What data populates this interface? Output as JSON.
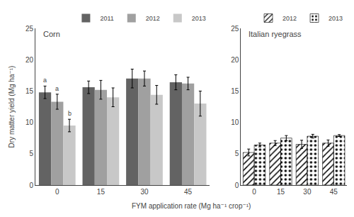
{
  "chart_data": [
    {
      "type": "bar",
      "title": "Corn",
      "categories": [
        "0",
        "15",
        "30",
        "45"
      ],
      "series": [
        {
          "name": "2011",
          "color": "#636363",
          "values": [
            14.8,
            15.6,
            17.0,
            16.4
          ],
          "errors": [
            1.0,
            1.0,
            1.5,
            1.2
          ]
        },
        {
          "name": "2012",
          "color": "#a0a0a0",
          "values": [
            13.3,
            15.2,
            17.0,
            16.2
          ],
          "errors": [
            1.2,
            1.5,
            1.2,
            1.0
          ]
        },
        {
          "name": "2013",
          "color": "#c8c8c8",
          "values": [
            9.5,
            14.0,
            14.4,
            13.0
          ],
          "errors": [
            1.0,
            1.5,
            1.5,
            2.0
          ]
        }
      ],
      "annotations": [
        {
          "text": "a",
          "series": "2011",
          "category": "0"
        },
        {
          "text": "a",
          "series": "2012",
          "category": "0"
        },
        {
          "text": "b",
          "series": "2013",
          "category": "0"
        }
      ],
      "ylim": [
        0,
        25
      ],
      "yticks": [
        0,
        5,
        10,
        15,
        20,
        25
      ],
      "ylabel": "Dry matter yield (Mg ha⁻¹)",
      "xlabel": "FYM application rate (Mg ha⁻¹ crop⁻¹)",
      "grid": false,
      "legend": "upper right"
    },
    {
      "type": "bar",
      "title": "Italian ryegrass",
      "categories": [
        "0",
        "15",
        "30",
        "45"
      ],
      "series": [
        {
          "name": "2012",
          "color": "#c0c0c0",
          "marker": "hatched",
          "values": [
            5.2,
            6.7,
            6.5,
            6.7
          ],
          "errors": [
            0.55,
            0.4,
            0.65,
            0.5
          ]
        },
        {
          "name": "2013",
          "color": "#c0c0c0",
          "marker": "dotted",
          "values": [
            6.4,
            7.5,
            7.8,
            7.9
          ],
          "errors": [
            0.3,
            0.4,
            0.3,
            0.15
          ]
        }
      ],
      "ylim": [
        0,
        25
      ],
      "yticks": [
        0,
        5,
        10,
        15,
        20,
        25
      ],
      "grid": false,
      "legend": "upper right"
    }
  ]
}
